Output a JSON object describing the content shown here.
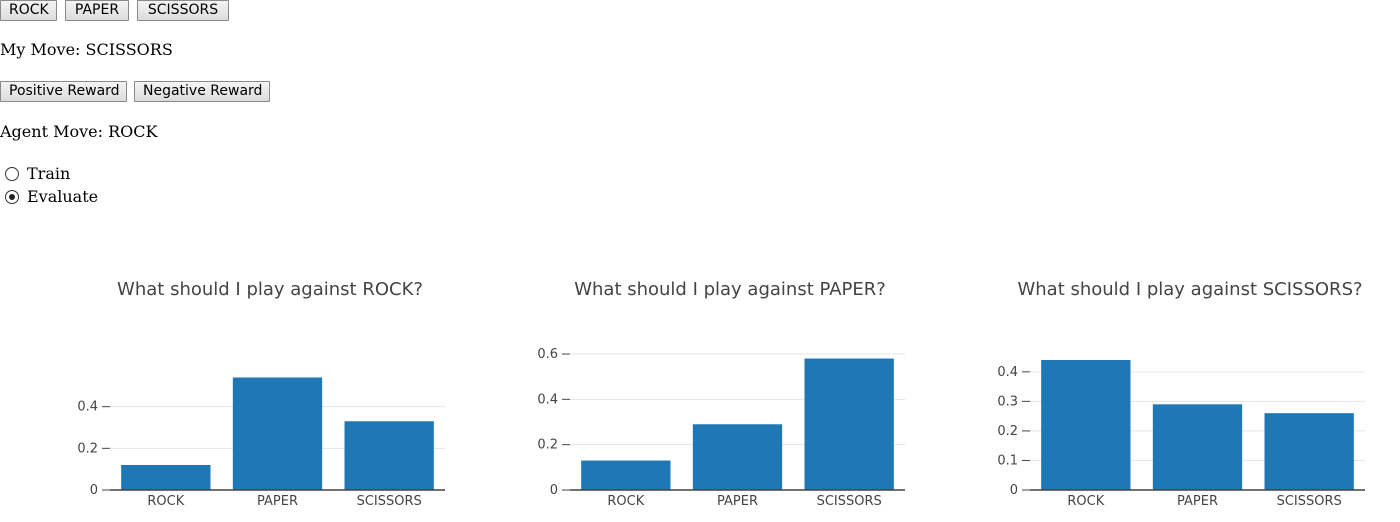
{
  "move_buttons": [
    "ROCK",
    "PAPER",
    "SCISSORS"
  ],
  "my_move": "My Move: SCISSORS",
  "reward_buttons": {
    "positive": "Positive Reward",
    "negative": "Negative Reward"
  },
  "agent_move": "Agent Move: ROCK",
  "mode": {
    "options": [
      "Train",
      "Evaluate"
    ],
    "selected": "Evaluate"
  },
  "colors": {
    "bar": "#1f77b4",
    "grid": "#e5e5e5",
    "axis": "#444444"
  },
  "chart_data": [
    {
      "type": "bar",
      "title": "What should I play against ROCK?",
      "categories": [
        "ROCK",
        "PAPER",
        "SCISSORS"
      ],
      "values": [
        0.12,
        0.54,
        0.33
      ],
      "ylim": [
        0,
        0.6
      ],
      "yticks": [
        0,
        0.2,
        0.4
      ],
      "ytick_labels": [
        "0",
        "0.2",
        "0.4"
      ],
      "grid": true,
      "xlabel": "",
      "ylabel": ""
    },
    {
      "type": "bar",
      "title": "What should I play against PAPER?",
      "categories": [
        "ROCK",
        "PAPER",
        "SCISSORS"
      ],
      "values": [
        0.13,
        0.29,
        0.58
      ],
      "ylim": [
        0,
        0.6
      ],
      "yticks": [
        0,
        0.2,
        0.4,
        0.6
      ],
      "ytick_labels": [
        "0",
        "0.2",
        "0.4",
        "0.6"
      ],
      "grid": true,
      "xlabel": "",
      "ylabel": ""
    },
    {
      "type": "bar",
      "title": "What should I play against SCISSORS?",
      "categories": [
        "ROCK",
        "PAPER",
        "SCISSORS"
      ],
      "values": [
        0.44,
        0.29,
        0.26
      ],
      "ylim": [
        0,
        0.44
      ],
      "yticks": [
        0,
        0.1,
        0.2,
        0.3,
        0.4
      ],
      "ytick_labels": [
        "0",
        "0.1",
        "0.2",
        "0.3",
        "0.4"
      ],
      "grid": true,
      "xlabel": "",
      "ylabel": ""
    }
  ]
}
